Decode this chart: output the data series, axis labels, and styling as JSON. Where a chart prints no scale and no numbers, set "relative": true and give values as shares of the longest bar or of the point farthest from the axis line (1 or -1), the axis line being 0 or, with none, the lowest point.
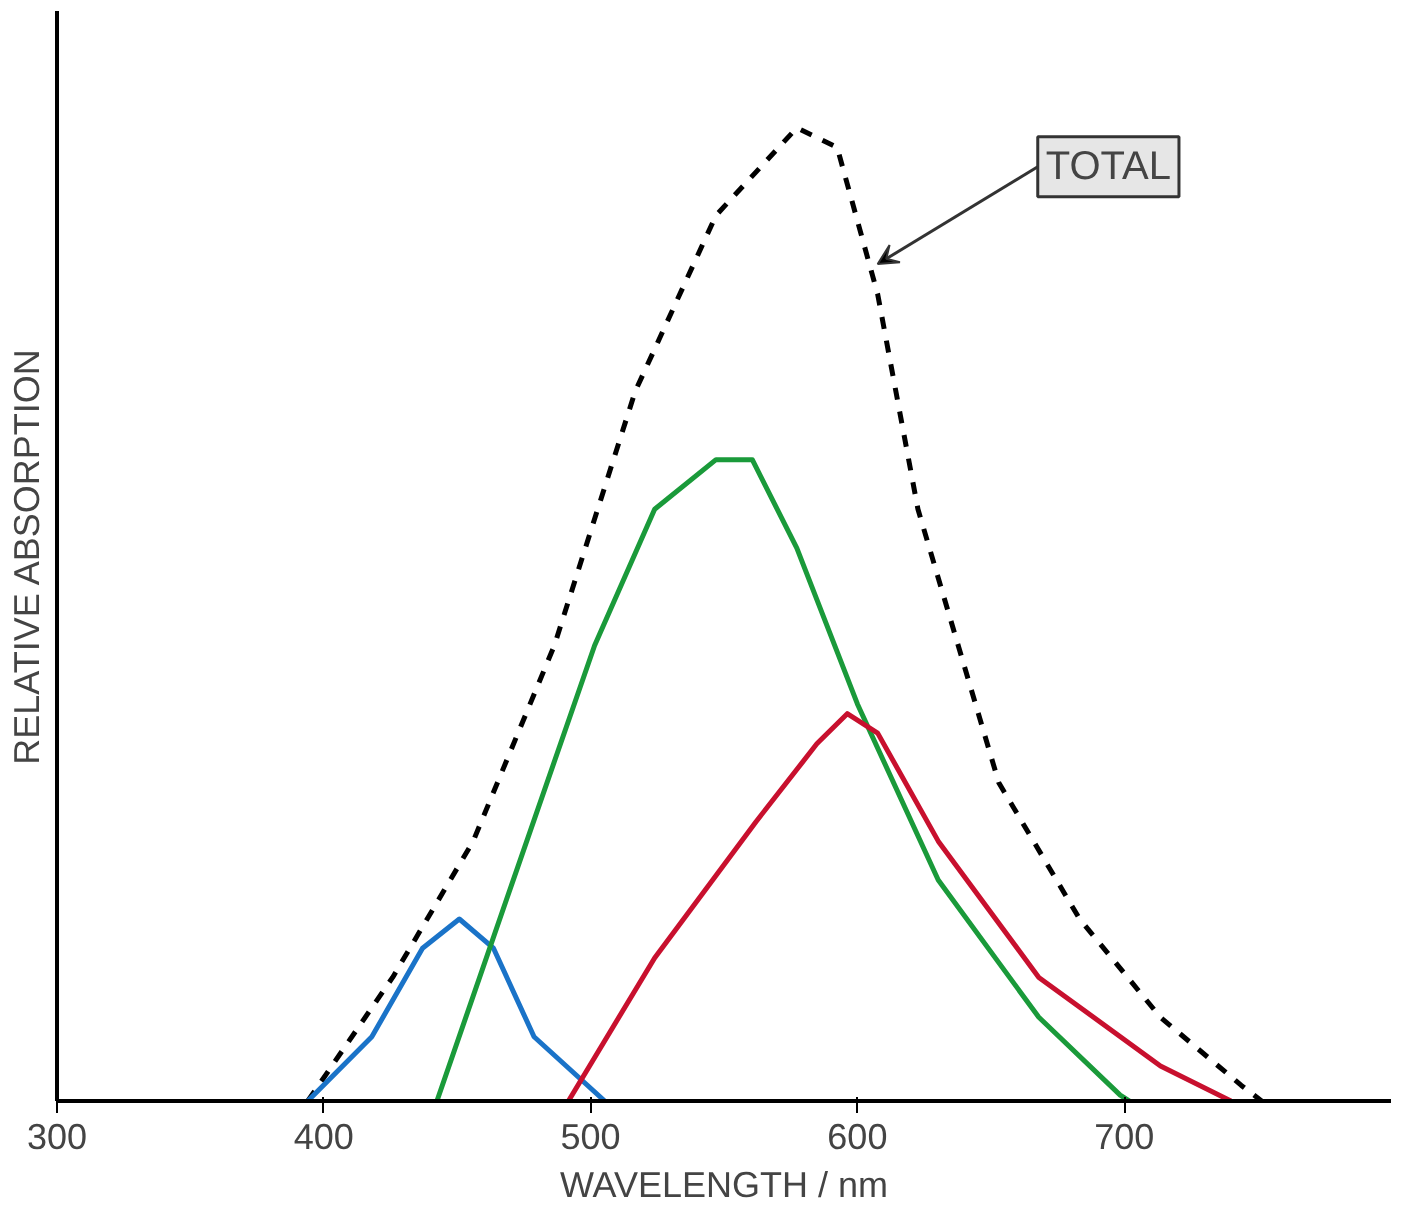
{
  "chart_data": {
    "type": "line",
    "xlabel": "WAVELENGTH / nm",
    "ylabel": "RELATIVE ABSORPTION",
    "relative": true,
    "xlim": [
      300,
      800
    ],
    "xticks": [
      300,
      400,
      500,
      600,
      700
    ],
    "series": [
      {
        "color": "#000000",
        "line_style": "dashed",
        "x": [
          394,
          425.8,
          456,
          486.4,
          516.7,
          547,
          577.3,
          592.4,
          607.6,
          622.7,
          653,
          683.3,
          713.6,
          743.9,
          751.5
        ],
        "values": [
          0,
          0.127,
          0.267,
          0.468,
          0.729,
          0.91,
          1.0,
          0.98,
          0.829,
          0.608,
          0.327,
          0.187,
          0.086,
          0.016,
          0
        ]
      },
      {
        "color": "#1a73c8",
        "x": [
          394,
          418,
          437,
          450.8,
          463.6,
          478.8,
          505.3
        ],
        "values": [
          0,
          0.066,
          0.157,
          0.187,
          0.157,
          0.066,
          0
        ]
      },
      {
        "color": "#1a9a3a",
        "x": [
          442.4,
          471,
          501.5,
          524,
          547,
          560.6,
          577.3,
          600,
          630.3,
          668,
          698.5,
          702
        ],
        "values": [
          0,
          0.227,
          0.468,
          0.608,
          0.659,
          0.659,
          0.568,
          0.408,
          0.227,
          0.086,
          0.006,
          0
        ]
      },
      {
        "color": "#c8102e",
        "x": [
          491.7,
          524,
          562,
          584.8,
          596.2,
          607.6,
          630.3,
          668,
          713.6,
          740
        ],
        "values": [
          0,
          0.147,
          0.287,
          0.367,
          0.398,
          0.378,
          0.267,
          0.127,
          0.036,
          0
        ]
      }
    ],
    "annotations": [
      {
        "text": "TOTAL",
        "x": 607.6,
        "y": 0.86
      }
    ]
  }
}
